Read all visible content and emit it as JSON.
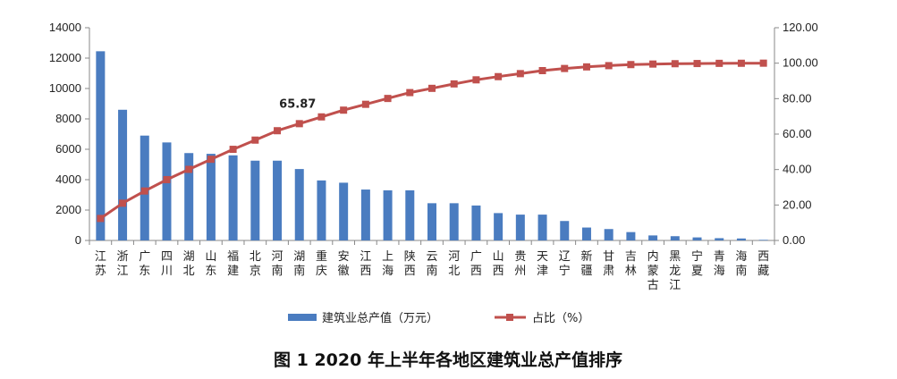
{
  "chart_data": {
    "type": "bar",
    "title": "图 1 2020 年上半年各地区建筑业总产值排序",
    "categories": [
      "江苏",
      "浙江",
      "广东",
      "四川",
      "湖北",
      "山东",
      "福建",
      "北京",
      "河南",
      "湖南",
      "重庆",
      "安徽",
      "江西",
      "上海",
      "陕西",
      "云南",
      "河北",
      "广西",
      "山西",
      "贵州",
      "天津",
      "辽宁",
      "新疆",
      "甘肃",
      "吉林",
      "内蒙古",
      "黑龙江",
      "宁夏",
      "青海",
      "海南",
      "西藏"
    ],
    "series": [
      {
        "name": "建筑业总产值（万元）",
        "type": "bar",
        "axis": "left",
        "color": "#4a7cc0",
        "values": [
          12450,
          8600,
          6900,
          6450,
          5750,
          5700,
          5600,
          5250,
          5250,
          4700,
          3950,
          3800,
          3350,
          3300,
          3300,
          2450,
          2450,
          2300,
          1800,
          1700,
          1700,
          1280,
          850,
          750,
          550,
          330,
          280,
          200,
          150,
          130,
          40
        ]
      },
      {
        "name": "占比（%）",
        "type": "line",
        "axis": "right",
        "color": "#c0504d",
        "values": [
          12.4,
          21.0,
          27.9,
          34.3,
          40.1,
          45.8,
          51.4,
          56.6,
          61.9,
          65.87,
          69.7,
          73.5,
          76.8,
          80.1,
          83.4,
          85.8,
          88.3,
          90.6,
          92.4,
          94.1,
          95.8,
          97.0,
          97.9,
          98.6,
          99.2,
          99.5,
          99.7,
          99.8,
          99.9,
          99.95,
          100.0
        ]
      }
    ],
    "y_left": {
      "min": 0,
      "max": 14000,
      "step": 2000,
      "tick_labels": [
        "0",
        "2000",
        "4000",
        "6000",
        "8000",
        "10000",
        "12000",
        "14000"
      ]
    },
    "y_right": {
      "min": 0,
      "max": 120,
      "step": 20,
      "tick_labels": [
        "0.00",
        "20.00",
        "40.00",
        "60.00",
        "80.00",
        "100.00",
        "120.00"
      ]
    },
    "annotations": [
      {
        "category": "湖南",
        "text": "65.87"
      }
    ],
    "legend": {
      "placement": "bottom",
      "bar_label": "建筑业总产值（万元）",
      "line_label": "占比（%）"
    },
    "grid": false
  }
}
